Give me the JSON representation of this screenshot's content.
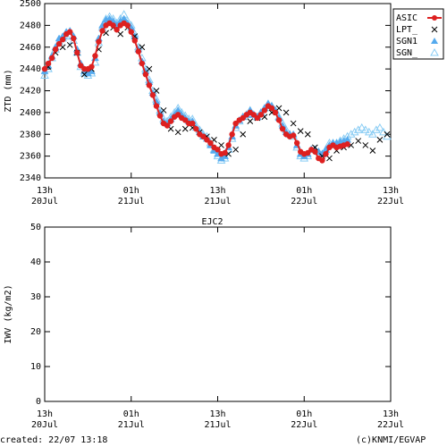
{
  "chart_data": [
    {
      "type": "line",
      "title": "",
      "ylabel": "ZTD (mm)",
      "xlabel": "",
      "ylim": [
        2340,
        2500
      ],
      "yticks": [
        2340,
        2360,
        2380,
        2400,
        2420,
        2440,
        2460,
        2480,
        2500
      ],
      "xlim": [
        0,
        48
      ],
      "xticks": [
        {
          "x": 0,
          "line1": "13h",
          "line2": "20Jul"
        },
        {
          "x": 12,
          "line1": "01h",
          "line2": "21Jul"
        },
        {
          "x": 24,
          "line1": "13h",
          "line2": "21Jul"
        },
        {
          "x": 36,
          "line1": "01h",
          "line2": "22Jul"
        },
        {
          "x": 48,
          "line1": "13h",
          "line2": "22Jul"
        }
      ],
      "legend_position": "right-outside-top",
      "series": [
        {
          "name": "ASIC",
          "color": "#dd2020",
          "marker": "circle-line",
          "x": [
            0.0,
            0.5,
            1.0,
            1.5,
            2.0,
            2.5,
            3.0,
            3.5,
            4.0,
            4.5,
            5.0,
            5.5,
            6.0,
            6.5,
            7.0,
            7.5,
            8.0,
            8.5,
            9.0,
            9.5,
            10.0,
            10.5,
            11.0,
            11.5,
            12.0,
            12.5,
            13.0,
            13.5,
            14.0,
            14.5,
            15.0,
            15.5,
            16.0,
            16.5,
            17.0,
            17.5,
            18.0,
            18.5,
            19.0,
            19.5,
            20.0,
            20.5,
            21.0,
            21.5,
            22.0,
            22.5,
            23.0,
            23.5,
            24.0,
            24.5,
            25.0,
            25.5,
            26.0,
            26.5,
            27.0,
            27.5,
            28.0,
            28.5,
            29.0,
            29.5,
            30.0,
            30.5,
            31.0,
            31.5,
            32.0,
            32.5,
            33.0,
            33.5,
            34.0,
            34.5,
            35.0,
            35.5,
            36.0,
            36.5,
            37.0,
            37.5,
            38.0,
            38.5,
            39.0,
            39.5,
            40.0,
            40.5,
            41.0,
            41.5,
            42.0
          ],
          "values": [
            2440,
            2445,
            2450,
            2458,
            2463,
            2467,
            2472,
            2474,
            2468,
            2455,
            2443,
            2440,
            2440,
            2442,
            2452,
            2465,
            2475,
            2480,
            2482,
            2480,
            2476,
            2480,
            2482,
            2480,
            2474,
            2466,
            2456,
            2445,
            2435,
            2425,
            2416,
            2406,
            2397,
            2390,
            2388,
            2392,
            2396,
            2398,
            2395,
            2393,
            2390,
            2390,
            2385,
            2380,
            2378,
            2375,
            2372,
            2368,
            2366,
            2362,
            2363,
            2370,
            2380,
            2390,
            2393,
            2395,
            2398,
            2400,
            2398,
            2395,
            2398,
            2402,
            2406,
            2404,
            2400,
            2393,
            2385,
            2380,
            2378,
            2379,
            2372,
            2364,
            2362,
            2363,
            2366,
            2364,
            2358,
            2356,
            2362,
            2368,
            2370,
            2368,
            2369,
            2370,
            2371
          ]
        },
        {
          "name": "LPT_",
          "color": "#000000",
          "marker": "x",
          "x": [
            0.5,
            1.5,
            2.5,
            3.5,
            4.5,
            5.5,
            6.5,
            7.5,
            8.5,
            9.5,
            10.5,
            11.5,
            12.5,
            13.5,
            14.5,
            15.5,
            16.5,
            17.5,
            18.5,
            19.5,
            20.5,
            21.5,
            22.5,
            23.5,
            24.5,
            25.5,
            26.5,
            27.5,
            28.5,
            29.5,
            30.5,
            31.5,
            32.5,
            33.5,
            34.5,
            35.5,
            36.5,
            37.5,
            38.5,
            39.5,
            40.5,
            41.5,
            42.5,
            43.5,
            44.5,
            45.5,
            46.5,
            47.5
          ],
          "values": [
            2442,
            2455,
            2460,
            2462,
            2455,
            2435,
            2440,
            2458,
            2473,
            2478,
            2472,
            2478,
            2470,
            2460,
            2440,
            2420,
            2402,
            2385,
            2382,
            2385,
            2386,
            2382,
            2378,
            2375,
            2370,
            2362,
            2366,
            2380,
            2392,
            2395,
            2396,
            2400,
            2404,
            2400,
            2390,
            2383,
            2380,
            2368,
            2360,
            2358,
            2365,
            2368,
            2370,
            2374,
            2370,
            2365,
            2375,
            2380
          ]
        },
        {
          "name": "SGN1",
          "color": "#55aaee",
          "marker": "triangle-filled",
          "x": [
            0.0,
            0.5,
            1.0,
            1.5,
            2.0,
            2.5,
            3.0,
            3.5,
            4.0,
            4.5,
            5.0,
            5.5,
            6.0,
            6.5,
            7.0,
            7.5,
            8.0,
            8.5,
            9.0,
            9.5,
            10.0,
            10.5,
            11.0,
            11.5,
            12.0,
            12.5,
            13.0,
            13.5,
            14.0,
            14.5,
            15.0,
            15.5,
            16.0,
            16.5,
            17.0,
            17.5,
            18.0,
            18.5,
            19.0,
            19.5,
            20.0,
            20.5,
            21.0,
            21.5,
            22.0,
            22.5,
            23.0,
            23.5,
            24.0,
            24.5,
            25.0,
            25.5,
            26.0,
            26.5,
            27.0,
            27.5,
            28.0,
            28.5,
            29.0,
            29.5,
            30.0,
            30.5,
            31.0,
            31.5,
            32.0,
            32.5,
            33.0,
            33.5,
            34.0,
            34.5,
            35.0,
            35.5,
            36.0,
            36.5,
            37.0,
            37.5,
            38.0,
            38.5,
            39.0,
            39.5,
            40.0,
            40.5,
            41.0,
            41.5,
            42.0
          ],
          "values": [
            2438,
            2443,
            2452,
            2460,
            2468,
            2470,
            2474,
            2475,
            2470,
            2458,
            2445,
            2438,
            2436,
            2438,
            2450,
            2468,
            2480,
            2485,
            2486,
            2484,
            2480,
            2484,
            2486,
            2482,
            2478,
            2470,
            2458,
            2447,
            2438,
            2428,
            2418,
            2410,
            2400,
            2392,
            2390,
            2394,
            2398,
            2402,
            2398,
            2395,
            2392,
            2392,
            2386,
            2382,
            2378,
            2376,
            2370,
            2365,
            2362,
            2358,
            2360,
            2368,
            2378,
            2388,
            2393,
            2396,
            2398,
            2402,
            2398,
            2396,
            2400,
            2404,
            2408,
            2406,
            2402,
            2395,
            2388,
            2382,
            2380,
            2380,
            2370,
            2362,
            2360,
            2362,
            2366,
            2366,
            2364,
            2362,
            2366,
            2370,
            2372,
            2372,
            2373,
            2374,
            2375
          ]
        },
        {
          "name": "SGN_",
          "color": "#88ccf4",
          "marker": "triangle-open",
          "x": [
            0.0,
            0.5,
            1.0,
            1.5,
            2.0,
            2.5,
            3.0,
            3.5,
            4.0,
            4.5,
            5.0,
            5.5,
            6.0,
            6.5,
            7.0,
            7.5,
            8.0,
            8.5,
            9.0,
            9.5,
            10.0,
            10.5,
            11.0,
            11.5,
            12.0,
            12.5,
            13.0,
            13.5,
            14.0,
            14.5,
            15.0,
            15.5,
            16.0,
            16.5,
            17.0,
            17.5,
            18.0,
            18.5,
            19.0,
            19.5,
            20.0,
            20.5,
            21.0,
            21.5,
            22.0,
            22.5,
            23.0,
            23.5,
            24.0,
            24.5,
            25.0,
            25.5,
            26.0,
            26.5,
            27.0,
            27.5,
            28.0,
            28.5,
            29.0,
            29.5,
            30.0,
            30.5,
            31.0,
            31.5,
            32.0,
            32.5,
            33.0,
            33.5,
            34.0,
            34.5,
            35.0,
            35.5,
            36.0,
            36.5,
            37.0,
            37.5,
            38.0,
            38.5,
            39.0,
            39.5,
            40.0,
            40.5,
            41.0,
            41.5,
            42.0,
            42.5,
            43.0,
            43.5,
            44.0,
            44.5,
            45.0,
            45.5,
            46.0,
            46.5,
            47.0,
            47.5
          ],
          "values": [
            2434,
            2440,
            2450,
            2458,
            2465,
            2468,
            2470,
            2470,
            2466,
            2455,
            2442,
            2436,
            2434,
            2436,
            2446,
            2464,
            2478,
            2486,
            2488,
            2486,
            2482,
            2486,
            2490,
            2484,
            2480,
            2472,
            2460,
            2450,
            2440,
            2430,
            2420,
            2412,
            2402,
            2394,
            2392,
            2396,
            2400,
            2404,
            2400,
            2397,
            2394,
            2394,
            2388,
            2384,
            2380,
            2378,
            2372,
            2366,
            2360,
            2356,
            2358,
            2366,
            2376,
            2386,
            2392,
            2396,
            2398,
            2402,
            2398,
            2396,
            2400,
            2404,
            2408,
            2406,
            2402,
            2396,
            2390,
            2384,
            2380,
            2378,
            2368,
            2360,
            2358,
            2360,
            2366,
            2366,
            2364,
            2362,
            2366,
            2372,
            2372,
            2372,
            2374,
            2376,
            2378,
            2380,
            2382,
            2384,
            2386,
            2384,
            2382,
            2380,
            2384,
            2386,
            2382,
            2378
          ]
        }
      ]
    },
    {
      "type": "line",
      "title": "EJC2",
      "ylabel": "IWV (kg/m2)",
      "xlabel": "",
      "ylim": [
        0,
        50
      ],
      "yticks": [
        0,
        10,
        20,
        30,
        40,
        50
      ],
      "xlim": [
        0,
        48
      ],
      "xticks": [
        {
          "x": 0,
          "line1": "13h",
          "line2": "20Jul"
        },
        {
          "x": 12,
          "line1": "01h",
          "line2": "21Jul"
        },
        {
          "x": 24,
          "line1": "13h",
          "line2": "21Jul"
        },
        {
          "x": 36,
          "line1": "01h",
          "line2": "22Jul"
        },
        {
          "x": 48,
          "line1": "13h",
          "line2": "22Jul"
        }
      ],
      "series": []
    }
  ],
  "footer": {
    "created": "created: 22/07 13:18",
    "credit": "(c)KNMI/EGVAP"
  }
}
